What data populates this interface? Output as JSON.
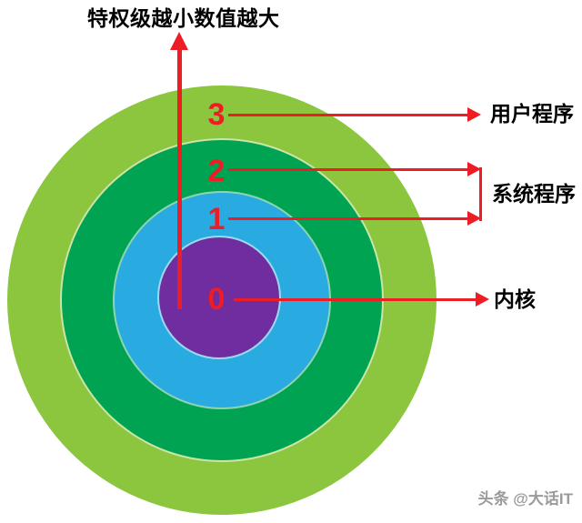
{
  "title": {
    "text": "特权级越小数值越大"
  },
  "axis": {
    "description": "upward red arrow along privilege axis"
  },
  "rings": [
    {
      "number": "3",
      "category": "用户程序",
      "color": "#8cc63f"
    },
    {
      "number": "2",
      "category": "系统程序",
      "color": "#00a351"
    },
    {
      "number": "1",
      "category": "系统程序",
      "color": "#29abe2"
    },
    {
      "number": "0",
      "category": "内核",
      "color": "#6f2da0"
    }
  ],
  "callouts": [
    {
      "label": "用户程序",
      "targets": [
        "3"
      ]
    },
    {
      "label": "系统程序",
      "targets": [
        "2",
        "1"
      ]
    },
    {
      "label": "内核",
      "targets": [
        "0"
      ]
    }
  ],
  "watermark": {
    "text": "头条 @大话IT"
  },
  "colors": {
    "arrow_red": "#ee1c25",
    "title_text": "#000000",
    "label_text": "#000000",
    "watermark_text": "#9a9a9a",
    "background": "#ffffff"
  }
}
